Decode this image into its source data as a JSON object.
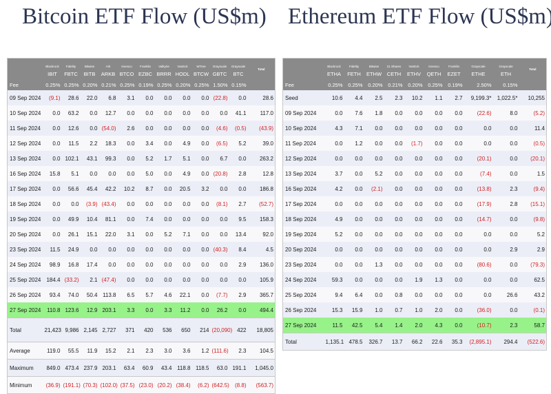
{
  "btc": {
    "title": "Bitcoin ETF Flow (US$m)",
    "issuers": [
      "Blackrock",
      "Fidelity",
      "Bitwise",
      "Ark",
      "Invesco",
      "Franklin",
      "Valkyrie",
      "VanEck",
      "WTree",
      "Grayscale",
      "Grayscale"
    ],
    "tickers": [
      "IBIT",
      "FBTC",
      "BITB",
      "ARKB",
      "BTCO",
      "EZBC",
      "BRRR",
      "HODL",
      "BTCW",
      "GBTC",
      "BTC"
    ],
    "total_header": "Total",
    "fee_label": "Fee",
    "fees": [
      "0.25%",
      "0.25%",
      "0.20%",
      "0.21%",
      "0.25%",
      "0.19%",
      "0.25%",
      "0.20%",
      "0.25%",
      "1.50%",
      "0.15%"
    ],
    "rows": [
      {
        "date": "09 Sep 2024",
        "values": [
          "(9.1)",
          "28.6",
          "22.0",
          "6.8",
          "3.1",
          "0.0",
          "0.0",
          "0.0",
          "0.0",
          "(22.8)",
          "0.0",
          "28.6"
        ]
      },
      {
        "date": "10 Sep 2024",
        "values": [
          "0.0",
          "63.2",
          "0.0",
          "12.7",
          "0.0",
          "0.0",
          "0.0",
          "0.0",
          "0.0",
          "0.0",
          "41.1",
          "117.0"
        ]
      },
      {
        "date": "11 Sep 2024",
        "values": [
          "0.0",
          "12.6",
          "0.0",
          "(54.0)",
          "2.6",
          "0.0",
          "0.0",
          "0.0",
          "0.0",
          "(4.6)",
          "(0.5)",
          "(43.9)"
        ]
      },
      {
        "date": "12 Sep 2024",
        "values": [
          "0.0",
          "11.5",
          "2.2",
          "18.3",
          "0.0",
          "3.4",
          "0.0",
          "4.9",
          "0.0",
          "(6.5)",
          "5.2",
          "39.0"
        ]
      },
      {
        "date": "13 Sep 2024",
        "values": [
          "0.0",
          "102.1",
          "43.1",
          "99.3",
          "0.0",
          "5.2",
          "1.7",
          "5.1",
          "0.0",
          "6.7",
          "0.0",
          "263.2"
        ]
      },
      {
        "date": "16 Sep 2024",
        "values": [
          "15.8",
          "5.1",
          "0.0",
          "0.0",
          "0.0",
          "5.0",
          "0.0",
          "4.9",
          "0.0",
          "(20.8)",
          "2.8",
          "12.8"
        ]
      },
      {
        "date": "17 Sep 2024",
        "values": [
          "0.0",
          "56.6",
          "45.4",
          "42.2",
          "10.2",
          "8.7",
          "0.0",
          "20.5",
          "3.2",
          "0.0",
          "0.0",
          "186.8"
        ]
      },
      {
        "date": "18 Sep 2024",
        "values": [
          "0.0",
          "0.0",
          "(3.9)",
          "(43.4)",
          "0.0",
          "0.0",
          "0.0",
          "0.0",
          "0.0",
          "(8.1)",
          "2.7",
          "(52.7)"
        ]
      },
      {
        "date": "19 Sep 2024",
        "values": [
          "0.0",
          "49.9",
          "10.4",
          "81.1",
          "0.0",
          "7.4",
          "0.0",
          "0.0",
          "0.0",
          "0.0",
          "9.5",
          "158.3"
        ]
      },
      {
        "date": "20 Sep 2024",
        "values": [
          "0.0",
          "26.1",
          "15.1",
          "22.0",
          "3.1",
          "0.0",
          "5.2",
          "7.1",
          "0.0",
          "0.0",
          "13.4",
          "92.0"
        ]
      },
      {
        "date": "23 Sep 2024",
        "values": [
          "11.5",
          "24.9",
          "0.0",
          "0.0",
          "0.0",
          "0.0",
          "0.0",
          "0.0",
          "0.0",
          "(40.3)",
          "8.4",
          "4.5"
        ]
      },
      {
        "date": "24 Sep 2024",
        "values": [
          "98.9",
          "16.8",
          "17.4",
          "0.0",
          "0.0",
          "0.0",
          "0.0",
          "0.0",
          "0.0",
          "0.0",
          "2.9",
          "136.0"
        ]
      },
      {
        "date": "25 Sep 2024",
        "values": [
          "184.4",
          "(33.2)",
          "2.1",
          "(47.4)",
          "0.0",
          "0.0",
          "0.0",
          "0.0",
          "0.0",
          "0.0",
          "0.0",
          "105.9"
        ]
      },
      {
        "date": "26 Sep 2024",
        "values": [
          "93.4",
          "74.0",
          "50.4",
          "113.8",
          "6.5",
          "5.7",
          "4.6",
          "22.1",
          "0.0",
          "(7.7)",
          "2.9",
          "365.7"
        ]
      },
      {
        "date": "27 Sep 2024",
        "values": [
          "110.8",
          "123.6",
          "12.9",
          "203.1",
          "3.3",
          "0.0",
          "3.3",
          "11.2",
          "0.0",
          "26.2",
          "0.0",
          "494.4"
        ],
        "highlight": true
      }
    ],
    "summary": [
      {
        "label": "Total",
        "values": [
          "21,423",
          "9,986",
          "2,145",
          "2,727",
          "371",
          "420",
          "536",
          "650",
          "214",
          "(20,090)",
          "422",
          "18,805"
        ],
        "tall": true
      },
      {
        "label": "Average",
        "values": [
          "119.0",
          "55.5",
          "11.9",
          "15.2",
          "2.1",
          "2.3",
          "3.0",
          "3.6",
          "1.2",
          "(111.6)",
          "2.3",
          "104.5"
        ]
      },
      {
        "label": "Maximum",
        "values": [
          "849.0",
          "473.4",
          "237.9",
          "203.1",
          "63.4",
          "60.9",
          "43.4",
          "118.8",
          "118.5",
          "63.0",
          "191.1",
          "1,045.0"
        ]
      },
      {
        "label": "Minimum",
        "values": [
          "(36.9)",
          "(191.1)",
          "(70.3)",
          "(102.0)",
          "(37.5)",
          "(23.0)",
          "(20.2)",
          "(38.4)",
          "(6.2)",
          "(642.5)",
          "(8.8)",
          "(563.7)"
        ]
      }
    ]
  },
  "eth": {
    "title": "Ethereum ETF Flow (US$m)",
    "issuers": [
      "Blackrock",
      "Fidelity",
      "Bitwise",
      "21 Shares",
      "VanEck",
      "Invesco",
      "Franklin",
      "Grayscale",
      "Grayscale"
    ],
    "tickers": [
      "ETHA",
      "FETH",
      "ETHW",
      "CETH",
      "ETHV",
      "QETH",
      "EZET",
      "ETHE",
      "ETH"
    ],
    "total_header": "Total",
    "fee_label": "Fee",
    "fees": [
      "0.25%",
      "0.25%",
      "0.20%",
      "0.21%",
      "0.20%",
      "0.25%",
      "0.19%",
      "2.50%",
      "0.15%"
    ],
    "rows": [
      {
        "date": "Seed",
        "values": [
          "10.6",
          "4.4",
          "2.5",
          "2.3",
          "10.2",
          "1.1",
          "2.7",
          "9,199.3*",
          "1,022.5*",
          "10,255"
        ]
      },
      {
        "date": "09 Sep 2024",
        "values": [
          "0.0",
          "7.6",
          "1.8",
          "0.0",
          "0.0",
          "0.0",
          "0.0",
          "(22.6)",
          "8.0",
          "(5.2)"
        ]
      },
      {
        "date": "10 Sep 2024",
        "values": [
          "4.3",
          "7.1",
          "0.0",
          "0.0",
          "0.0",
          "0.0",
          "0.0",
          "0.0",
          "0.0",
          "11.4"
        ]
      },
      {
        "date": "11 Sep 2024",
        "values": [
          "0.0",
          "1.2",
          "0.0",
          "0.0",
          "(1.7)",
          "0.0",
          "0.0",
          "0.0",
          "0.0",
          "(0.5)"
        ]
      },
      {
        "date": "12 Sep 2024",
        "values": [
          "0.0",
          "0.0",
          "0.0",
          "0.0",
          "0.0",
          "0.0",
          "0.0",
          "(20.1)",
          "0.0",
          "(20.1)"
        ]
      },
      {
        "date": "13 Sep 2024",
        "values": [
          "3.7",
          "0.0",
          "5.2",
          "0.0",
          "0.0",
          "0.0",
          "0.0",
          "(7.4)",
          "0.0",
          "1.5"
        ]
      },
      {
        "date": "16 Sep 2024",
        "values": [
          "4.2",
          "0.0",
          "(2.1)",
          "0.0",
          "0.0",
          "0.0",
          "0.0",
          "(13.8)",
          "2.3",
          "(9.4)"
        ]
      },
      {
        "date": "17 Sep 2024",
        "values": [
          "0.0",
          "0.0",
          "0.0",
          "0.0",
          "0.0",
          "0.0",
          "0.0",
          "(17.9)",
          "2.8",
          "(15.1)"
        ]
      },
      {
        "date": "18 Sep 2024",
        "values": [
          "4.9",
          "0.0",
          "0.0",
          "0.0",
          "0.0",
          "0.0",
          "0.0",
          "(14.7)",
          "0.0",
          "(9.8)"
        ]
      },
      {
        "date": "19 Sep 2024",
        "values": [
          "5.2",
          "0.0",
          "0.0",
          "0.0",
          "0.0",
          "0.0",
          "0.0",
          "0.0",
          "0.0",
          "5.2"
        ]
      },
      {
        "date": "20 Sep 2024",
        "values": [
          "0.0",
          "0.0",
          "0.0",
          "0.0",
          "0.0",
          "0.0",
          "0.0",
          "0.0",
          "2.9",
          "2.9"
        ]
      },
      {
        "date": "23 Sep 2024",
        "values": [
          "0.0",
          "0.0",
          "1.3",
          "0.0",
          "0.0",
          "0.0",
          "0.0",
          "(80.6)",
          "0.0",
          "(79.3)"
        ]
      },
      {
        "date": "24 Sep 2024",
        "values": [
          "59.3",
          "0.0",
          "0.0",
          "0.0",
          "1.9",
          "1.3",
          "0.0",
          "0.0",
          "0.0",
          "62.5"
        ]
      },
      {
        "date": "25 Sep 2024",
        "values": [
          "9.4",
          "6.4",
          "0.0",
          "0.8",
          "0.0",
          "0.0",
          "0.0",
          "0.0",
          "26.6",
          "43.2"
        ]
      },
      {
        "date": "26 Sep 2024",
        "values": [
          "15.3",
          "15.9",
          "1.0",
          "0.7",
          "1.0",
          "2.0",
          "0.0",
          "(36.0)",
          "0.0",
          "(0.1)"
        ]
      },
      {
        "date": "27 Sep 2024",
        "values": [
          "11.5",
          "42.5",
          "5.4",
          "1.4",
          "2.0",
          "4.3",
          "0.0",
          "(10.7)",
          "2.3",
          "58.7"
        ],
        "highlight": true
      }
    ],
    "summary": [
      {
        "label": "Total",
        "values": [
          "1,135.1",
          "478.5",
          "326.7",
          "13.7",
          "66.2",
          "22.6",
          "35.3",
          "(2,895.1)",
          "294.4",
          "(522.6)"
        ]
      }
    ]
  }
}
